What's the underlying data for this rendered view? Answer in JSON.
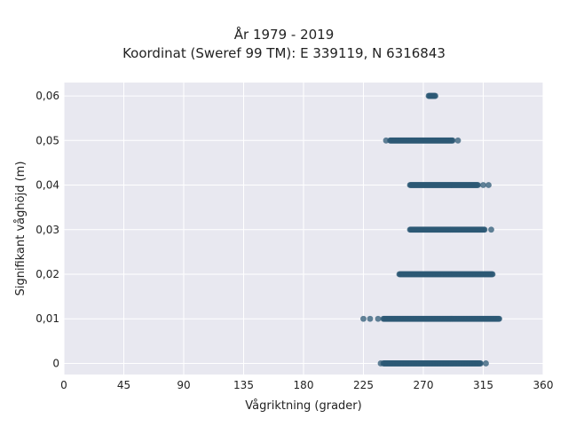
{
  "chart_data": {
    "type": "scatter",
    "title_lines": [
      "År 1979 - 2019",
      "Koordinat (Sweref 99 TM): E 339119, N 6316843"
    ],
    "xlabel": "Vågriktning (grader)",
    "ylabel": "Signifikant våghöjd (m)",
    "xlim": [
      0,
      360
    ],
    "ylim": [
      -0.0025,
      0.063
    ],
    "x_ticks": [
      0,
      45,
      90,
      135,
      180,
      225,
      270,
      315,
      360
    ],
    "y_ticks": [
      0,
      0.01,
      0.02,
      0.03,
      0.04,
      0.05,
      0.06
    ],
    "y_tick_labels": [
      "0",
      "0,01",
      "0,02",
      "0,03",
      "0,04",
      "0,05",
      "0,06"
    ],
    "grid": true,
    "marker_color": "#2e5a75",
    "plot_background": "#e8e8f0",
    "bands": [
      {
        "y": 0.06,
        "x_min": 274,
        "x_max": 279,
        "extra_x": []
      },
      {
        "y": 0.05,
        "x_min": 245,
        "x_max": 292,
        "extra_x": [
          242,
          296
        ]
      },
      {
        "y": 0.04,
        "x_min": 260,
        "x_max": 311,
        "extra_x": [
          315,
          319
        ]
      },
      {
        "y": 0.03,
        "x_min": 260,
        "x_max": 316,
        "extra_x": [
          321
        ]
      },
      {
        "y": 0.02,
        "x_min": 252,
        "x_max": 322,
        "extra_x": []
      },
      {
        "y": 0.01,
        "x_min": 240,
        "x_max": 327,
        "extra_x": [
          225,
          230,
          236
        ]
      },
      {
        "y": 0.0,
        "x_min": 240,
        "x_max": 313,
        "extra_x": [
          238,
          317
        ]
      }
    ]
  }
}
